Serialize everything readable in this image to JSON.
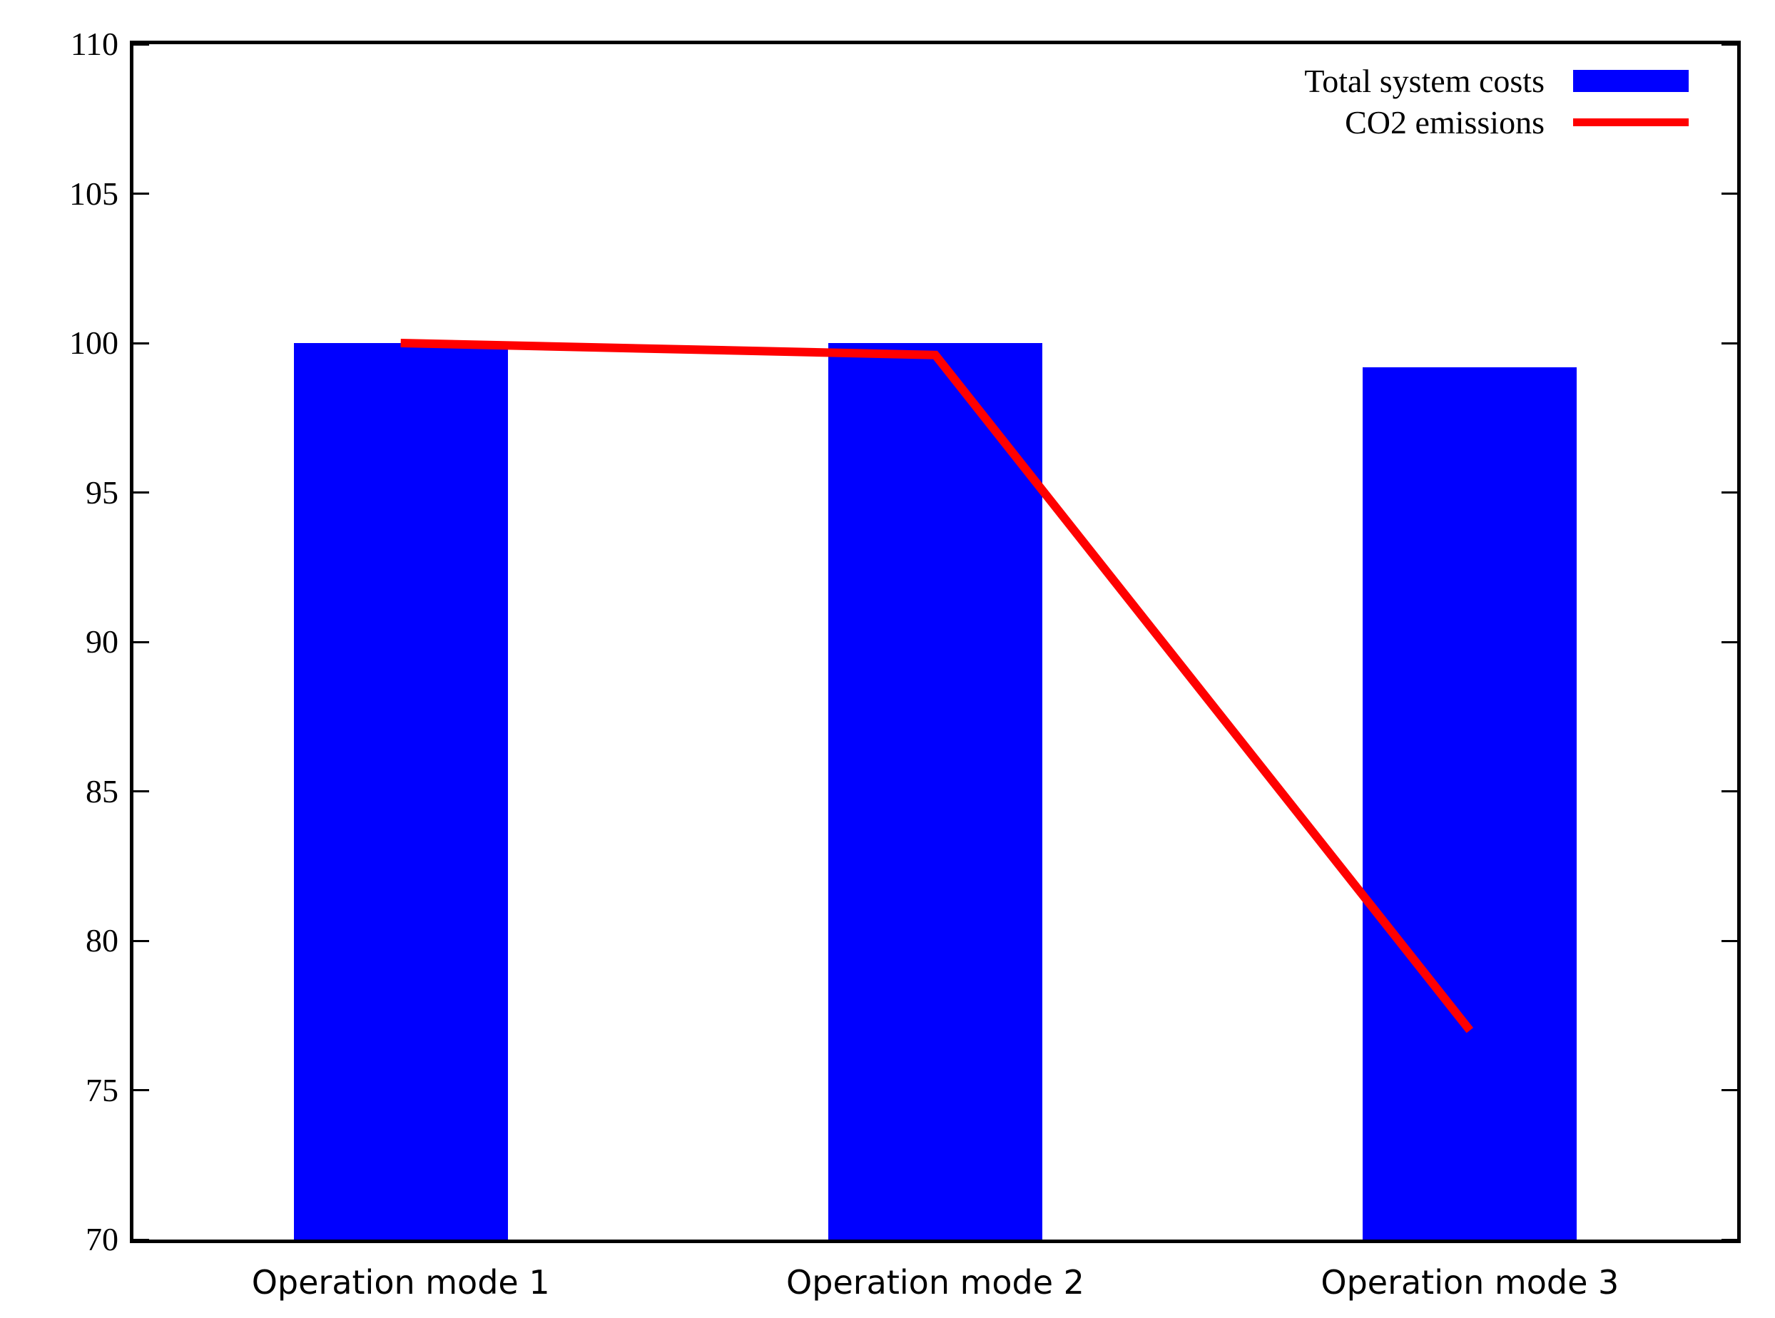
{
  "chart_data": {
    "type": "bar",
    "subtype": "bar-line-combo",
    "title": "",
    "xlabel": "",
    "ylabel": "",
    "categories": [
      "Operation mode 1",
      "Operation mode 2",
      "Operation mode 3"
    ],
    "series": [
      {
        "name": "Total system costs",
        "type": "bar",
        "values": [
          100.0,
          100.0,
          99.2
        ],
        "color": "#0000ff"
      },
      {
        "name": "CO2 emissions",
        "type": "line",
        "values": [
          100.0,
          99.6,
          77.0
        ],
        "color": "#ff0000"
      }
    ],
    "ylim": [
      70,
      110
    ],
    "ytick_step": 5,
    "yticks": [
      70,
      75,
      80,
      85,
      90,
      95,
      100,
      105,
      110
    ],
    "grid": false,
    "tics_mirrored": true,
    "legend_position": "top-right",
    "colors": {
      "bar_fill": "#0000ff",
      "line_stroke": "#ff0000",
      "axis": "#000000",
      "background": "#ffffff"
    }
  }
}
